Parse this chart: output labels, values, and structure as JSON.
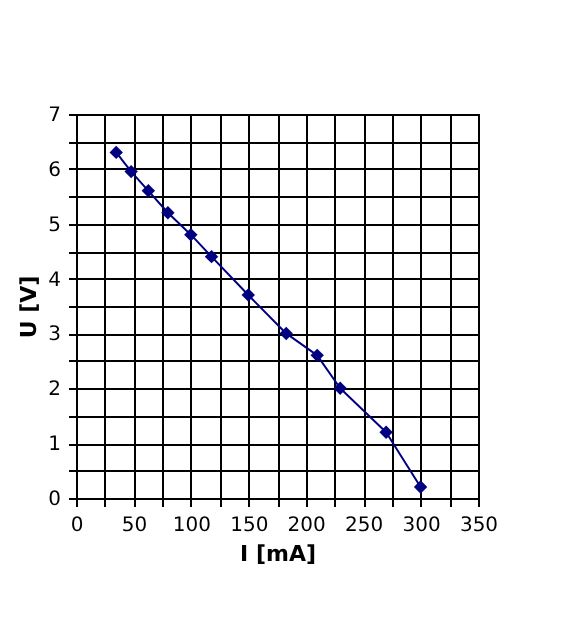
{
  "chart_data": {
    "type": "line",
    "xlabel": "I [mA]",
    "ylabel": "U  [V]",
    "x": [
      35,
      48,
      63,
      80,
      100,
      118,
      150,
      183,
      210,
      230,
      270,
      300
    ],
    "series": [
      {
        "color": "#000080",
        "values": [
          6.3,
          5.95,
          5.6,
          5.2,
          4.8,
          4.4,
          3.7,
          3.0,
          2.6,
          2.0,
          1.2,
          0.2
        ]
      }
    ],
    "xlim": [
      0,
      350
    ],
    "xticks": [
      0,
      {
        "value": 25,
        "label": null
      },
      50,
      {
        "value": 75,
        "label": null
      },
      100,
      {
        "value": 125,
        "label": null
      },
      150,
      {
        "value": 175,
        "label": null
      },
      200,
      {
        "value": 225,
        "label": null
      },
      250,
      {
        "value": 275,
        "label": null
      },
      300,
      {
        "value": 325,
        "label": null
      },
      350
    ],
    "ylim": [
      0,
      7
    ],
    "yticks": [
      0,
      {
        "value": 0.5,
        "label": null
      },
      1,
      {
        "value": 1.5,
        "label": null
      },
      2,
      {
        "value": 2.5,
        "label": null
      },
      3,
      {
        "value": 3.5,
        "label": null
      },
      4,
      {
        "value": 4.5,
        "label": null
      },
      5,
      {
        "value": 5.5,
        "label": null
      },
      6,
      {
        "value": 6.5,
        "label": null
      },
      7
    ],
    "grid": true,
    "marker": "diamond",
    "line_style": "solid"
  }
}
